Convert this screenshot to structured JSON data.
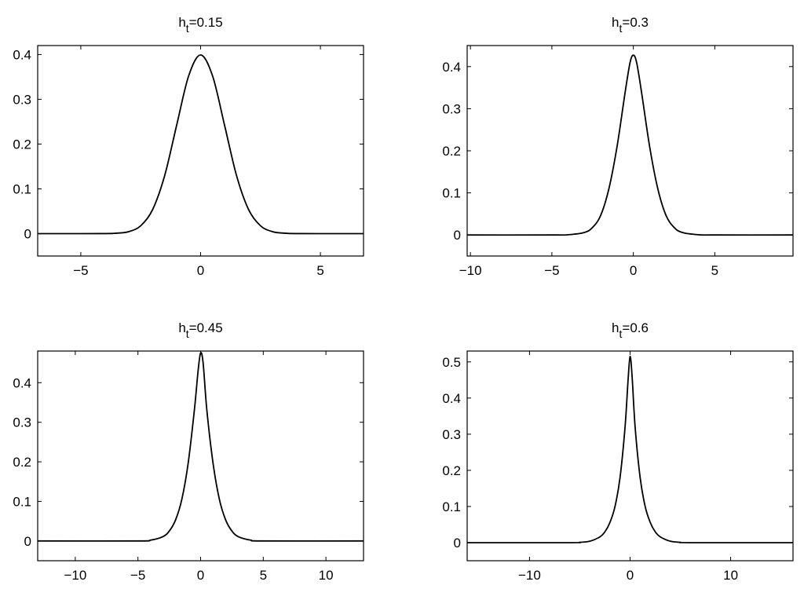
{
  "figure": {
    "background": "#ffffff",
    "line_color": "#000000"
  },
  "chart_data": [
    {
      "type": "line",
      "title": "h_t=0.15",
      "title_main": "h",
      "title_sub": "t",
      "title_rest": "=0.15",
      "xlabel": "",
      "ylabel": "",
      "xlim": [
        -6.8,
        6.8
      ],
      "ylim": [
        -0.05,
        0.42
      ],
      "xticks": [
        -5,
        0,
        5
      ],
      "xtick_labels": [
        "−5",
        "0",
        "5"
      ],
      "yticks": [
        0,
        0.1,
        0.2,
        0.3,
        0.4
      ],
      "ytick_labels": [
        "0",
        "0.1",
        "0.2",
        "0.3",
        "0.4"
      ],
      "grid": false,
      "series": [
        {
          "x": [
            -6.8,
            -5,
            -4,
            -3.5,
            -3,
            -2.5,
            -2,
            -1.5,
            -1,
            -0.5,
            0,
            0.5,
            1,
            1.5,
            2,
            2.5,
            3,
            3.5,
            4,
            5,
            6.8
          ],
          "y": [
            0,
            0,
            0.0001,
            0.001,
            0.0044,
            0.0175,
            0.054,
            0.1295,
            0.242,
            0.352,
            0.399,
            0.352,
            0.242,
            0.1295,
            0.054,
            0.0175,
            0.0044,
            0.001,
            0.0001,
            0,
            0
          ]
        }
      ]
    },
    {
      "type": "line",
      "title": "h_t=0.3",
      "title_main": "h",
      "title_sub": "t",
      "title_rest": "=0.3",
      "xlabel": "",
      "ylabel": "",
      "xlim": [
        -10.2,
        9.8
      ],
      "ylim": [
        -0.05,
        0.45
      ],
      "xticks": [
        -10,
        -5,
        0,
        5
      ],
      "xtick_labels": [
        "−10",
        "−5",
        "0",
        "5"
      ],
      "yticks": [
        0,
        0.1,
        0.2,
        0.3,
        0.4
      ],
      "ytick_labels": [
        "0",
        "0.1",
        "0.2",
        "0.3",
        "0.4"
      ],
      "grid": false,
      "series": [
        {
          "x": [
            -10.2,
            -5,
            -4,
            -3,
            -2.5,
            -2,
            -1.5,
            -1,
            -0.5,
            -0.2,
            0,
            0.2,
            0.5,
            1,
            1.5,
            2,
            2.5,
            3,
            4,
            5,
            9.8
          ],
          "y": [
            0,
            0,
            0.0006,
            0.006,
            0.018,
            0.047,
            0.11,
            0.21,
            0.34,
            0.41,
            0.427,
            0.41,
            0.34,
            0.21,
            0.11,
            0.047,
            0.018,
            0.006,
            0.0006,
            0,
            0
          ]
        }
      ]
    },
    {
      "type": "line",
      "title": "h_t=0.45",
      "title_main": "h",
      "title_sub": "t",
      "title_rest": "=0.45",
      "xlabel": "",
      "ylabel": "",
      "xlim": [
        -13,
        13
      ],
      "ylim": [
        -0.05,
        0.48
      ],
      "xticks": [
        -10,
        -5,
        0,
        5,
        10
      ],
      "xtick_labels": [
        "−10",
        "−5",
        "0",
        "5",
        "10"
      ],
      "yticks": [
        0,
        0.1,
        0.2,
        0.3,
        0.4
      ],
      "ytick_labels": [
        "0",
        "0.1",
        "0.2",
        "0.3",
        "0.4"
      ],
      "grid": false,
      "series": [
        {
          "x": [
            -13,
            -5,
            -4,
            -3,
            -2.5,
            -2,
            -1.5,
            -1,
            -0.5,
            -0.2,
            0,
            0.2,
            0.5,
            1,
            1.5,
            2,
            2.5,
            3,
            4,
            5,
            13
          ],
          "y": [
            0,
            0,
            0.002,
            0.011,
            0.025,
            0.053,
            0.105,
            0.195,
            0.33,
            0.43,
            0.475,
            0.45,
            0.33,
            0.195,
            0.105,
            0.053,
            0.025,
            0.011,
            0.002,
            0,
            0
          ]
        }
      ]
    },
    {
      "type": "line",
      "title": "h_t=0.6",
      "title_main": "h",
      "title_sub": "t",
      "title_rest": "=0.6",
      "xlabel": "",
      "ylabel": "",
      "xlim": [
        -16.2,
        16.2
      ],
      "ylim": [
        -0.05,
        0.53
      ],
      "xticks": [
        -10,
        0,
        10
      ],
      "xtick_labels": [
        "−10",
        "0",
        "10"
      ],
      "yticks": [
        0,
        0.1,
        0.2,
        0.3,
        0.4,
        0.5
      ],
      "ytick_labels": [
        "0",
        "0.1",
        "0.2",
        "0.3",
        "0.4",
        "0.5"
      ],
      "grid": false,
      "series": [
        {
          "x": [
            -16.2,
            -6,
            -5,
            -4,
            -3,
            -2.5,
            -2,
            -1.5,
            -1,
            -0.5,
            -0.2,
            0,
            0.2,
            0.5,
            1,
            1.5,
            2,
            2.5,
            3,
            4,
            5,
            6,
            16.2
          ],
          "y": [
            0,
            0,
            0.001,
            0.004,
            0.016,
            0.03,
            0.056,
            0.1,
            0.18,
            0.32,
            0.45,
            0.515,
            0.46,
            0.32,
            0.18,
            0.1,
            0.056,
            0.03,
            0.016,
            0.004,
            0.001,
            0,
            0
          ]
        }
      ]
    }
  ]
}
